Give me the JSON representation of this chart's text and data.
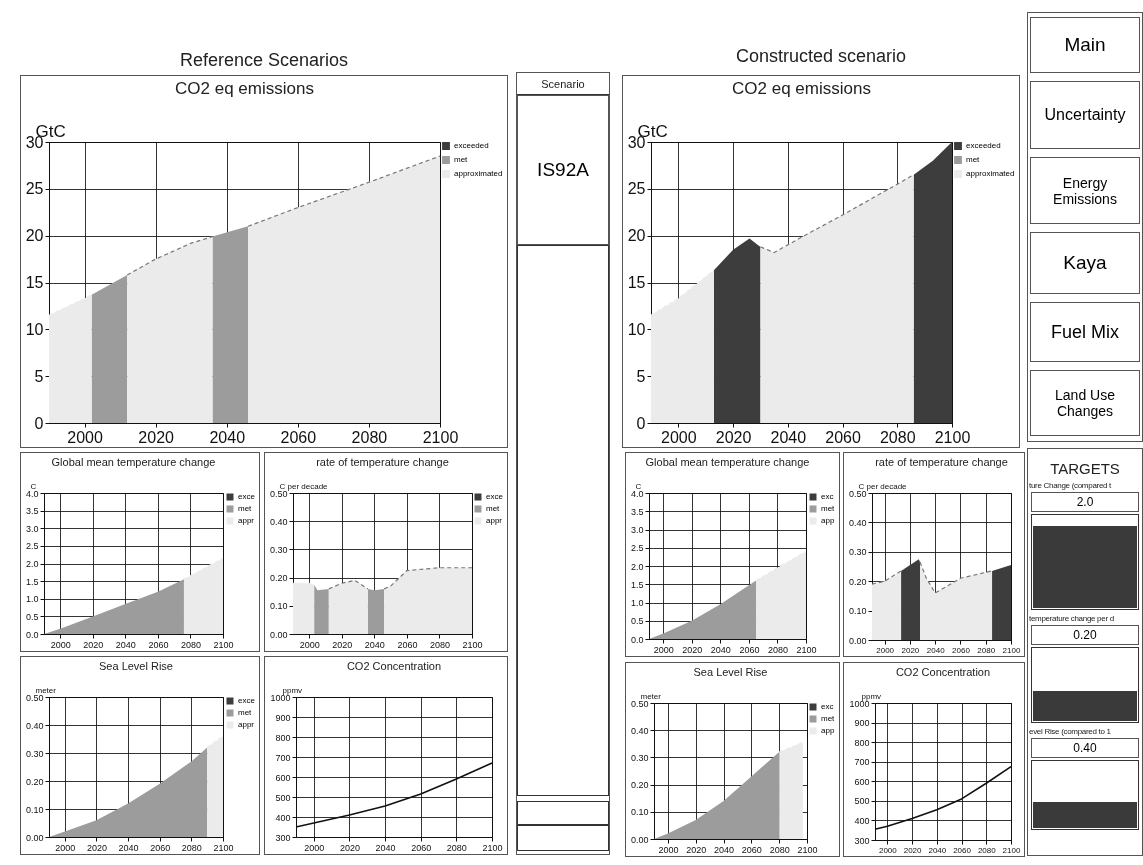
{
  "chart_data": [
    {
      "type": "other",
      "title": "Reference Scenarios"
    },
    {
      "type": "area",
      "title": "CO2 eq emissions",
      "ylabel": "GtC",
      "xlim": [
        1990,
        2100
      ],
      "xticks": [
        2000,
        2020,
        2040,
        2060,
        2080,
        2100
      ],
      "ylim": [
        0,
        30
      ],
      "yticks": [
        0,
        5,
        10,
        15,
        20,
        25,
        30
      ],
      "grid": true,
      "legend": "top right",
      "series": [
        {
          "name": "exceeded",
          "color": "#3d3d3d"
        },
        {
          "name": "met",
          "color": "#9c9c9c",
          "x": [
            2002,
            2012
          ],
          "values": [
            13.7,
            15.8
          ]
        },
        {
          "color": "#9c9c9c",
          "x": [
            2036,
            2046
          ],
          "values": [
            19.9,
            21.0
          ]
        },
        {
          "name": "approximated",
          "color": "#ebebeb",
          "line_style": "dashed",
          "x": [
            1990,
            2000,
            2002
          ],
          "values": [
            11.5,
            13.3,
            13.7
          ]
        },
        {
          "color": "#ebebeb",
          "line_style": "dashed",
          "x": [
            2012,
            2020,
            2030,
            2036
          ],
          "values": [
            15.8,
            17.5,
            19.2,
            19.9
          ]
        },
        {
          "color": "#ebebeb",
          "line_style": "dashed",
          "x": [
            2046,
            2060,
            2080,
            2100
          ],
          "values": [
            21.0,
            23.0,
            25.7,
            28.5
          ]
        }
      ]
    },
    {
      "type": "area",
      "title": "Global mean temperature change",
      "ylabel": "C",
      "xlim": [
        1990,
        2100
      ],
      "xticks": [
        2000,
        2020,
        2040,
        2060,
        2080,
        2100
      ],
      "ylim": [
        0,
        4
      ],
      "yticks": [
        {
          "value": 0,
          "label": "0.0"
        },
        0.5,
        {
          "value": 1,
          "label": "1.0"
        },
        1.5,
        {
          "value": 2,
          "label": "2.0"
        },
        2.5,
        {
          "value": 3,
          "label": "3.0"
        },
        3.5,
        {
          "value": 4,
          "label": "4.0"
        }
      ],
      "grid": true,
      "legend": "top right",
      "series": [
        {
          "name": "exce",
          "color": "#3d3d3d"
        },
        {
          "name": "met",
          "color": "#9c9c9c",
          "x": [
            1990,
            2000,
            2020,
            2040,
            2060,
            2076
          ],
          "values": [
            0,
            0.15,
            0.5,
            0.85,
            1.2,
            1.55
          ]
        },
        {
          "name": "appr",
          "color": "#ebebeb",
          "line_style": "dashed",
          "x": [
            2076,
            2100
          ],
          "values": [
            1.55,
            2.15
          ]
        }
      ]
    },
    {
      "type": "area",
      "title": "rate of temperature change",
      "ylabel": "C per decade",
      "xlim": [
        1990,
        2100
      ],
      "xticks": [
        2000,
        2020,
        2040,
        2060,
        2080,
        2100
      ],
      "ylim": [
        0,
        0.5
      ],
      "yticks": [
        {
          "value": 0,
          "label": "0.00"
        },
        {
          "value": 0.1,
          "label": "0.10"
        },
        {
          "value": 0.2,
          "label": "0.20"
        },
        {
          "value": 0.3,
          "label": "0.30"
        },
        {
          "value": 0.4,
          "label": "0.40"
        },
        {
          "value": 0.5,
          "label": "0.50"
        }
      ],
      "grid": true,
      "legend": "top right",
      "series": [
        {
          "name": "exce",
          "color": "#3d3d3d"
        },
        {
          "name": "met",
          "color": "#9c9c9c",
          "x": [
            2003,
            2005,
            2012
          ],
          "values": [
            0.175,
            0.155,
            0.16
          ]
        },
        {
          "color": "#9c9c9c",
          "x": [
            2036,
            2040,
            2046
          ],
          "values": [
            0.16,
            0.155,
            0.16
          ]
        },
        {
          "name": "appr",
          "color": "#ebebeb",
          "line_style": "dashed",
          "x": [
            1990,
            2000,
            2003
          ],
          "values": [
            0.18,
            0.18,
            0.175
          ]
        },
        {
          "color": "#ebebeb",
          "line_style": "dashed",
          "x": [
            2012,
            2020,
            2028,
            2036
          ],
          "values": [
            0.16,
            0.18,
            0.19,
            0.16
          ]
        },
        {
          "color": "#ebebeb",
          "line_style": "dashed",
          "x": [
            2046,
            2050,
            2060,
            2080,
            2100
          ],
          "values": [
            0.16,
            0.17,
            0.225,
            0.235,
            0.235
          ]
        }
      ]
    },
    {
      "type": "area",
      "title": "Sea Level Rise",
      "ylabel": "meter",
      "xlim": [
        1990,
        2100
      ],
      "xticks": [
        2000,
        2020,
        2040,
        2060,
        2080,
        2100
      ],
      "ylim": [
        0,
        0.5
      ],
      "yticks": [
        {
          "value": 0,
          "label": "0.00"
        },
        {
          "value": 0.1,
          "label": "0.10"
        },
        {
          "value": 0.2,
          "label": "0.20"
        },
        {
          "value": 0.3,
          "label": "0.30"
        },
        {
          "value": 0.4,
          "label": "0.40"
        },
        {
          "value": 0.5,
          "label": "0.50"
        }
      ],
      "grid": true,
      "legend": "top right",
      "series": [
        {
          "name": "exce",
          "color": "#3d3d3d"
        },
        {
          "name": "met",
          "color": "#9c9c9c",
          "x": [
            1990,
            2000,
            2020,
            2040,
            2060,
            2080,
            2090
          ],
          "values": [
            0,
            0.02,
            0.06,
            0.12,
            0.19,
            0.27,
            0.32
          ]
        },
        {
          "name": "appr",
          "color": "#ebebeb",
          "line_style": "dashed",
          "x": [
            2090,
            2100
          ],
          "values": [
            0.32,
            0.36
          ]
        }
      ]
    },
    {
      "type": "line",
      "title": "CO2 Concentration",
      "ylabel": "ppmv",
      "xlim": [
        1990,
        2100
      ],
      "xticks": [
        2000,
        2020,
        2040,
        2060,
        2080,
        2100
      ],
      "ylim": [
        300,
        1000
      ],
      "yticks": [
        300,
        400,
        500,
        600,
        700,
        800,
        900,
        1000
      ],
      "grid": true,
      "series": [
        {
          "color": "#111111",
          "x": [
            1990,
            2000,
            2020,
            2040,
            2060,
            2080,
            2100
          ],
          "values": [
            350,
            370,
            410,
            455,
            515,
            590,
            670
          ]
        }
      ]
    },
    {
      "type": "other",
      "title": "Scenario",
      "annotations": [
        "IS92A"
      ]
    },
    {
      "type": "other",
      "title": "Constructed scenario"
    },
    {
      "type": "area",
      "title": "CO2 eq emissions",
      "ylabel": "GtC",
      "xlim": [
        1990,
        2100
      ],
      "xticks": [
        2000,
        2020,
        2040,
        2060,
        2080,
        2100
      ],
      "ylim": [
        0,
        30
      ],
      "yticks": [
        0,
        5,
        10,
        15,
        20,
        25,
        30
      ],
      "grid": true,
      "legend": "top right",
      "series": [
        {
          "name": "exceeded",
          "color": "#3d3d3d",
          "x": [
            2013,
            2020,
            2026,
            2030
          ],
          "values": [
            16.3,
            18.5,
            19.7,
            18.8
          ]
        },
        {
          "color": "#3d3d3d",
          "x": [
            2086,
            2093,
            2100
          ],
          "values": [
            26.5,
            28.0,
            30.0
          ]
        },
        {
          "name": "met",
          "color": "#9c9c9c"
        },
        {
          "name": "approximated",
          "color": "#ebebeb",
          "line_style": "dashed",
          "x": [
            1990,
            2000,
            2013
          ],
          "values": [
            11.5,
            13.3,
            16.3
          ]
        },
        {
          "color": "#ebebeb",
          "line_style": "dashed",
          "x": [
            2030,
            2035,
            2046,
            2060,
            2080,
            2086
          ],
          "values": [
            18.8,
            18.2,
            20.0,
            22.2,
            25.5,
            26.5
          ]
        }
      ]
    },
    {
      "type": "area",
      "title": "Global mean temperature change",
      "ylabel": "C",
      "xlim": [
        1990,
        2100
      ],
      "xticks": [
        2000,
        2020,
        2040,
        2060,
        2080,
        2100
      ],
      "ylim": [
        0,
        4
      ],
      "yticks": [
        {
          "value": 0,
          "label": "0.0"
        },
        0.5,
        {
          "value": 1,
          "label": "1.0"
        },
        1.5,
        {
          "value": 2,
          "label": "2.0"
        },
        2.5,
        {
          "value": 3,
          "label": "3.0"
        },
        3.5,
        {
          "value": 4,
          "label": "4.0"
        }
      ],
      "grid": true,
      "legend": "top right",
      "series": [
        {
          "name": "exc",
          "color": "#3d3d3d"
        },
        {
          "name": "met",
          "color": "#9c9c9c",
          "x": [
            1990,
            2000,
            2020,
            2040,
            2065
          ],
          "values": [
            0,
            0.15,
            0.5,
            0.95,
            1.6
          ]
        },
        {
          "name": "app",
          "color": "#ebebeb",
          "line_style": "dashed",
          "x": [
            2065,
            2080,
            2100
          ],
          "values": [
            1.6,
            1.95,
            2.4
          ]
        }
      ]
    },
    {
      "type": "area",
      "title": "rate of temperature change",
      "ylabel": "C per decade",
      "xlim": [
        1990,
        2100
      ],
      "xticks": [
        2000,
        2020,
        2040,
        2060,
        2080,
        2100
      ],
      "ylim": [
        0,
        0.5
      ],
      "yticks": [
        {
          "value": 0,
          "label": "0.00"
        },
        {
          "value": 0.1,
          "label": "0.10"
        },
        {
          "value": 0.2,
          "label": "0.20"
        },
        {
          "value": 0.3,
          "label": "0.30"
        },
        {
          "value": 0.4,
          "label": "0.40"
        },
        {
          "value": 0.5,
          "label": "0.50"
        }
      ],
      "grid": true,
      "series": [
        {
          "color": "#3d3d3d",
          "x": [
            2013,
            2027,
            2028
          ],
          "values": [
            0.235,
            0.275,
            0.265
          ]
        },
        {
          "color": "#3d3d3d",
          "x": [
            2085,
            2100
          ],
          "values": [
            0.235,
            0.255
          ]
        },
        {
          "color": "#ebebeb",
          "line_style": "dashed",
          "x": [
            1990,
            2000,
            2013
          ],
          "values": [
            0.19,
            0.2,
            0.235
          ]
        },
        {
          "color": "#ebebeb",
          "line_style": "dashed",
          "x": [
            2028,
            2033,
            2040,
            2060,
            2085
          ],
          "values": [
            0.265,
            0.21,
            0.16,
            0.21,
            0.235
          ]
        }
      ]
    },
    {
      "type": "area",
      "title": "Sea Level Rise",
      "ylabel": "meter",
      "xlim": [
        1990,
        2100
      ],
      "xticks": [
        2000,
        2020,
        2040,
        2060,
        2080,
        2100
      ],
      "ylim": [
        0,
        0.5
      ],
      "yticks": [
        {
          "value": 0,
          "label": "0.00"
        },
        {
          "value": 0.1,
          "label": "0.10"
        },
        {
          "value": 0.2,
          "label": "0.20"
        },
        {
          "value": 0.3,
          "label": "0.30"
        },
        {
          "value": 0.4,
          "label": "0.40"
        },
        {
          "value": 0.5,
          "label": "0.50"
        }
      ],
      "grid": true,
      "legend": "top right",
      "series": [
        {
          "name": "exc",
          "color": "#3d3d3d"
        },
        {
          "name": "met",
          "color": "#9c9c9c",
          "x": [
            1990,
            2000,
            2020,
            2040,
            2060,
            2080
          ],
          "values": [
            0,
            0.02,
            0.07,
            0.14,
            0.23,
            0.32
          ]
        },
        {
          "name": "app",
          "color": "#ebebeb",
          "line_style": "dashed",
          "x": [
            2080,
            2097
          ],
          "values": [
            0.32,
            0.355
          ]
        }
      ]
    },
    {
      "type": "line",
      "title": "CO2 Concentration",
      "ylabel": "ppmv",
      "xlim": [
        1990,
        2100
      ],
      "xticks": [
        2000,
        2020,
        2040,
        2060,
        2080,
        2100
      ],
      "ylim": [
        300,
        1000
      ],
      "yticks": [
        300,
        400,
        500,
        600,
        700,
        800,
        900,
        1000
      ],
      "grid": true,
      "series": [
        {
          "color": "#111111",
          "x": [
            1990,
            2000,
            2020,
            2040,
            2060,
            2080,
            2100
          ],
          "values": [
            355,
            370,
            410,
            455,
            510,
            590,
            675
          ]
        }
      ]
    },
    {
      "type": "other",
      "annotations": [
        "Main",
        "Uncertainty",
        "Energy Emissions",
        "Kaya",
        "Fuel Mix",
        "Land Use Changes"
      ]
    },
    {
      "type": "other",
      "title": "TARGETS",
      "annotations": [
        "ture Change (compared t",
        "2.0",
        "temperature change per d",
        "0.20",
        "evel Rise (compared to 1",
        "0.40"
      ]
    }
  ]
}
